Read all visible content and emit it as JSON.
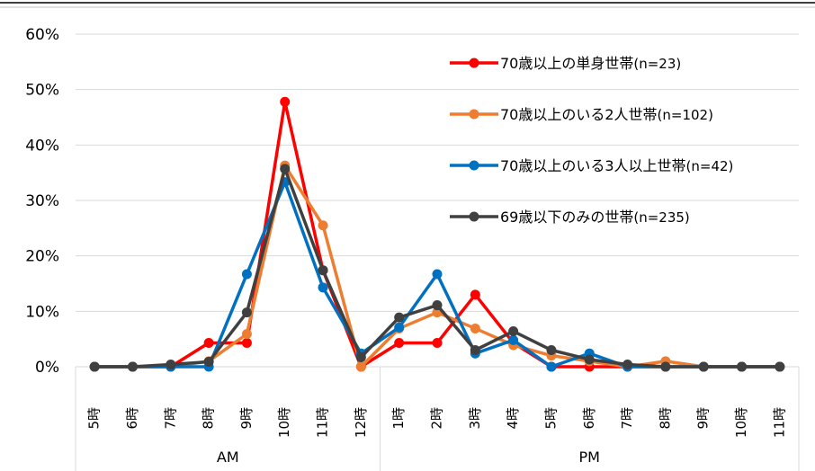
{
  "chart_data": {
    "type": "line",
    "title": "",
    "xlabel": "",
    "ylabel": "",
    "ylim": [
      0,
      60
    ],
    "yticks": [
      "0%",
      "10%",
      "20%",
      "30%",
      "40%",
      "50%",
      "60%"
    ],
    "yunit": "%",
    "grid": true,
    "legend_position": "top-right",
    "categories": [
      "5時",
      "6時",
      "7時",
      "8時",
      "9時",
      "10時",
      "11時",
      "12時",
      "1時",
      "2時",
      "3時",
      "4時",
      "5時",
      "6時",
      "7時",
      "8時",
      "9時",
      "10時",
      "11時"
    ],
    "groups": [
      {
        "label": "AM",
        "count": 8
      },
      {
        "label": "PM",
        "count": 11
      }
    ],
    "series": [
      {
        "name": "70歳以上の単身世帯",
        "n": "(n=23)",
        "color": "#FF0000",
        "values": [
          0,
          0,
          0,
          4.3,
          4.3,
          47.8,
          17.4,
          0,
          4.3,
          4.3,
          13.0,
          4.3,
          0,
          0,
          0,
          0,
          0,
          0,
          0
        ]
      },
      {
        "name": "70歳以上のいる2人世帯",
        "n": "(n=102)",
        "color": "#ED7D31",
        "values": [
          0,
          0,
          0,
          1.0,
          5.9,
          36.3,
          25.5,
          0,
          6.9,
          9.8,
          6.9,
          3.9,
          2.0,
          1.0,
          0,
          1.0,
          0,
          0,
          0
        ]
      },
      {
        "name": "70歳以上のいる3人以上世帯",
        "n": "(n=42)",
        "color": "#0070C0",
        "values": [
          0,
          0,
          0,
          0,
          16.7,
          33.3,
          14.3,
          2.4,
          7.1,
          16.7,
          2.4,
          4.8,
          0,
          2.4,
          0,
          0,
          0,
          0,
          0
        ]
      },
      {
        "name": "69歳以下のみの世帯",
        "n": "(n=235)",
        "color": "#404040",
        "values": [
          0,
          0,
          0.4,
          0.9,
          9.8,
          35.7,
          17.4,
          1.7,
          8.9,
          11.1,
          3.0,
          6.4,
          3.0,
          1.3,
          0.4,
          0,
          0,
          0,
          0
        ]
      }
    ]
  }
}
